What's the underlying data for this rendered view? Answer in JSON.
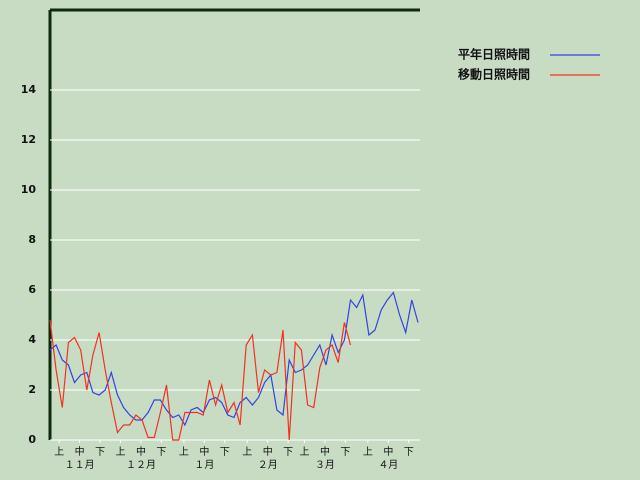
{
  "chart_data": {
    "type": "line",
    "x": [
      0,
      3,
      6,
      9,
      12,
      15,
      18,
      21,
      24,
      27,
      30,
      33,
      36,
      39,
      42,
      45,
      48,
      51,
      54,
      57,
      60,
      63,
      66,
      69,
      72,
      75,
      78,
      81,
      84,
      87,
      90,
      93,
      96,
      99,
      102,
      105,
      108,
      111,
      114,
      117,
      120,
      123,
      126,
      129,
      132,
      135,
      138,
      141,
      144,
      147,
      150,
      153,
      156,
      159,
      162,
      165,
      168,
      171,
      174,
      177,
      180
    ],
    "series": [
      {
        "name": "平年日照時間",
        "color": "#3344dd",
        "values": [
          3.6,
          3.8,
          3.2,
          3.0,
          2.3,
          2.6,
          2.7,
          1.9,
          1.8,
          2.0,
          2.7,
          1.8,
          1.3,
          1.0,
          0.8,
          0.8,
          1.1,
          1.6,
          1.6,
          1.2,
          0.9,
          1.0,
          0.6,
          1.2,
          1.3,
          1.1,
          1.6,
          1.7,
          1.5,
          1.0,
          0.9,
          1.5,
          1.7,
          1.4,
          1.7,
          2.3,
          2.6,
          1.2,
          1.0,
          3.2,
          2.7,
          2.8,
          3.0,
          3.4,
          3.8,
          3.0,
          4.2,
          3.5,
          4.0,
          5.6,
          5.3,
          5.8,
          4.2,
          4.4,
          5.2,
          5.6,
          5.9,
          5.0,
          4.3,
          5.6,
          4.7
        ]
      },
      {
        "name": "移動日照時間",
        "color": "#ee3322",
        "values": [
          4.8,
          2.8,
          1.3,
          3.9,
          4.1,
          3.6,
          2.0,
          3.4,
          4.3,
          2.8,
          1.5,
          0.3,
          0.6,
          0.6,
          1.0,
          0.8,
          0.1,
          0.1,
          1.1,
          2.2,
          0.0,
          0.0,
          1.1,
          1.1,
          1.1,
          1.0,
          2.4,
          1.4,
          2.2,
          1.1,
          1.5,
          0.6,
          3.8,
          4.2,
          1.9,
          2.8,
          2.6,
          2.7,
          4.4,
          0.0,
          3.9,
          3.6,
          1.4,
          1.3,
          2.9,
          3.6,
          3.8,
          3.1,
          4.7,
          3.8,
          null,
          null,
          null,
          null,
          null,
          null,
          null,
          null,
          null,
          null,
          null
        ]
      }
    ],
    "xlim": [
      0,
      181
    ],
    "ylim": [
      0,
      17.2
    ],
    "yticks": [
      0,
      2,
      4,
      6,
      8,
      10,
      12,
      14
    ],
    "grid": true,
    "xticks": [
      {
        "value": 4.5,
        "label": "上"
      },
      {
        "value": 14.5,
        "label": "中"
      },
      {
        "value": 24.5,
        "label": "下"
      },
      {
        "value": 34.5,
        "label": "上"
      },
      {
        "value": 44.5,
        "label": "中"
      },
      {
        "value": 54.5,
        "label": "下"
      },
      {
        "value": 65.5,
        "label": "上"
      },
      {
        "value": 75.5,
        "label": "中"
      },
      {
        "value": 85.5,
        "label": "下"
      },
      {
        "value": 96.5,
        "label": "上"
      },
      {
        "value": 106.5,
        "label": "中"
      },
      {
        "value": 116.5,
        "label": "下"
      },
      {
        "value": 124.5,
        "label": "上"
      },
      {
        "value": 134.5,
        "label": "中"
      },
      {
        "value": 144.5,
        "label": "下"
      },
      {
        "value": 155.5,
        "label": "上"
      },
      {
        "value": 165.5,
        "label": "中"
      },
      {
        "value": 175.5,
        "label": "下"
      }
    ],
    "month_ticks": [
      {
        "value": 14.5,
        "label": "１１月"
      },
      {
        "value": 44.5,
        "label": "１２月"
      },
      {
        "value": 75.5,
        "label": "１月"
      },
      {
        "value": 106.5,
        "label": "２月"
      },
      {
        "value": 134.5,
        "label": "３月"
      },
      {
        "value": 165.5,
        "label": "４月"
      }
    ]
  }
}
